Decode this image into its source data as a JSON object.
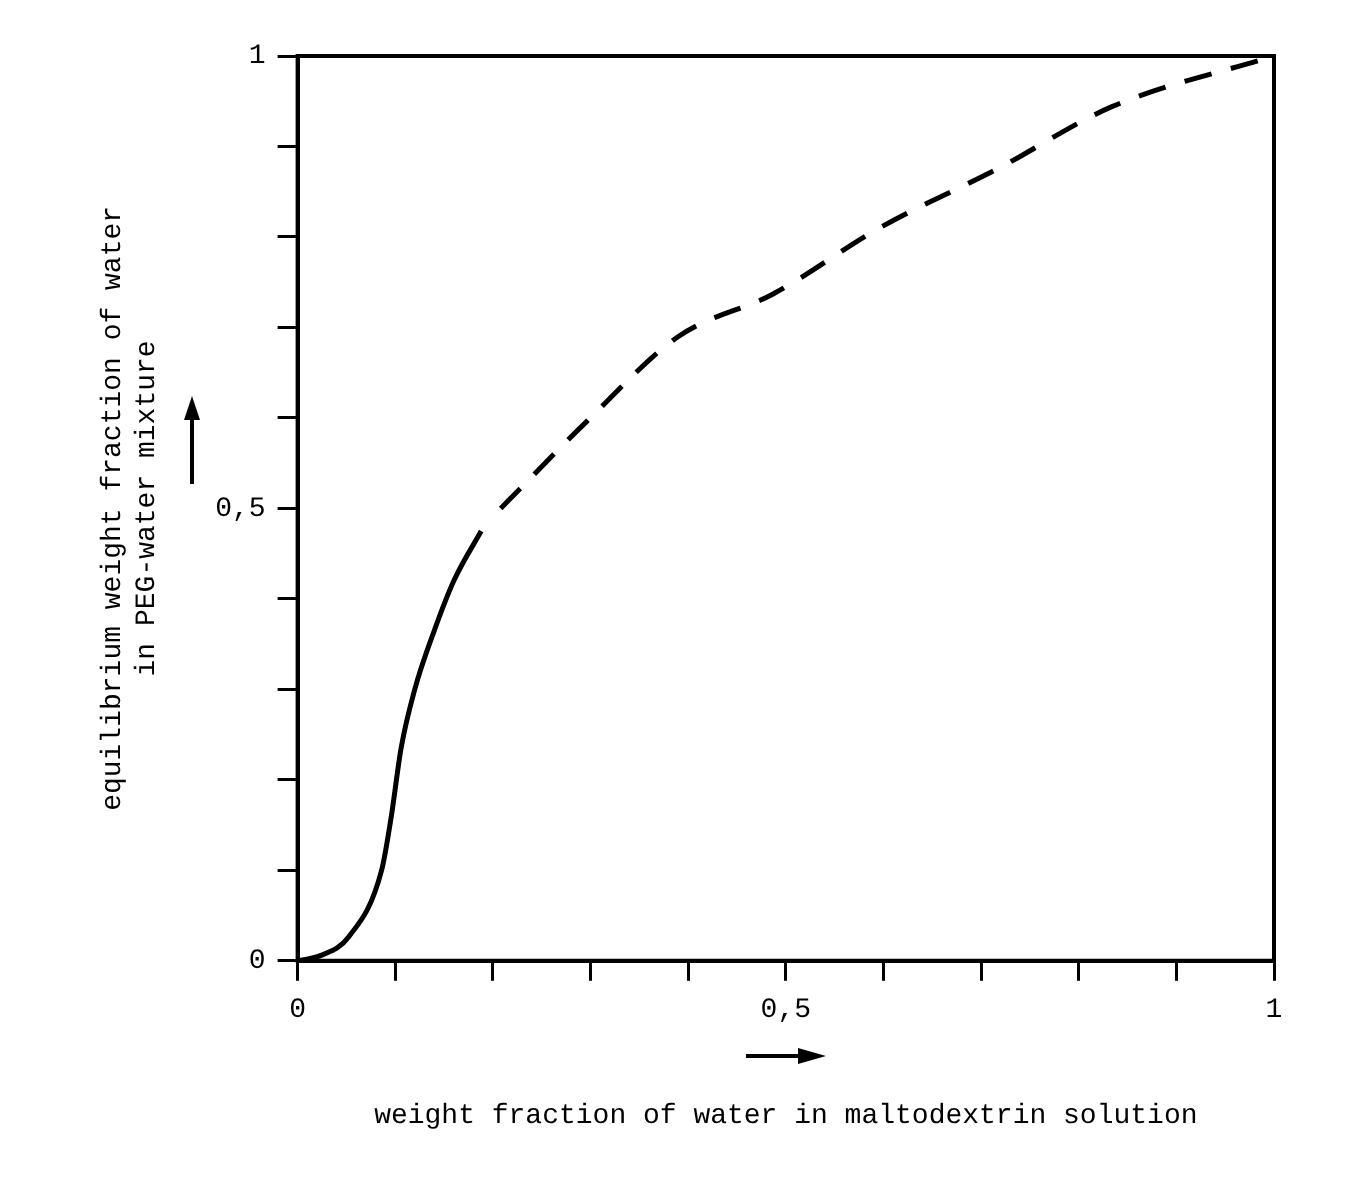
{
  "chart_data": {
    "type": "line",
    "xlabel": "weight fraction of water in maltodextrin solution",
    "ylabel": "equilibrium weight fraction of water\nin PEG-water mixture",
    "series": [
      {
        "color": "#000000",
        "line_style": "solid",
        "x": [
          0,
          0.024,
          0.052,
          0.086,
          0.096,
          0.106,
          0.12,
          0.14,
          0.16,
          0.188
        ],
        "values": [
          0,
          0.006,
          0.026,
          0.1,
          0.16,
          0.235,
          0.3,
          0.365,
          0.42,
          0.475
        ]
      },
      {
        "color": "#000000",
        "line_style": "dashed",
        "x": [
          0.208,
          0.297,
          0.39,
          0.487,
          0.596,
          0.718,
          0.834,
          1
        ],
        "values": [
          0.5,
          0.597,
          0.69,
          0.737,
          0.81,
          0.876,
          0.944,
          1
        ]
      }
    ],
    "xlim": [
      0,
      1
    ],
    "ylim": [
      0,
      1
    ],
    "xticks": [
      0,
      {
        "value": 0.1,
        "label": null
      },
      {
        "value": 0.2,
        "label": null
      },
      {
        "value": 0.3,
        "label": null
      },
      {
        "value": 0.4,
        "label": null
      },
      {
        "value": 0.5,
        "label": "0,5"
      },
      {
        "value": 0.6,
        "label": null
      },
      {
        "value": 0.7,
        "label": null
      },
      {
        "value": 0.8,
        "label": null
      },
      {
        "value": 0.9,
        "label": null
      },
      1
    ],
    "yticks": [
      0,
      {
        "value": 0.1,
        "label": null
      },
      {
        "value": 0.2,
        "label": null
      },
      {
        "value": 0.3,
        "label": null
      },
      {
        "value": 0.4,
        "label": null
      },
      {
        "value": 0.5,
        "label": "0,5"
      },
      {
        "value": 0.6,
        "label": null
      },
      {
        "value": 0.7,
        "label": null
      },
      {
        "value": 0.8,
        "label": null
      },
      {
        "value": 0.9,
        "label": null
      },
      1
    ],
    "grid": false,
    "legend": false,
    "marker": "none"
  }
}
